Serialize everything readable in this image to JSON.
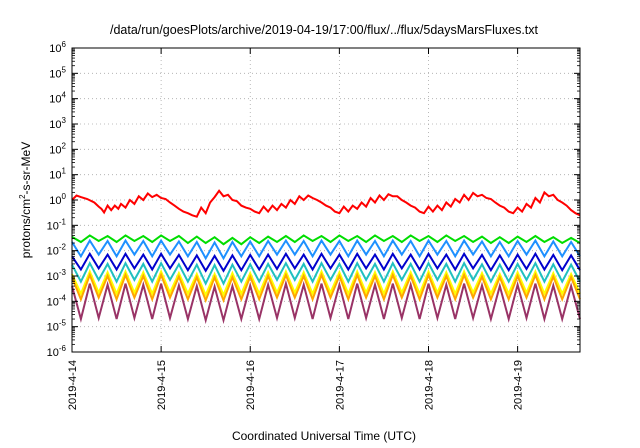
{
  "chart_data": {
    "type": "line",
    "title": "/data/run/goesPlots/archive/2019-04-19/17:00/flux/../flux/5daysMarsFluxes.txt",
    "xlabel": "Coordinated Universal Time (UTC)",
    "ylabel": "protons/cm²-s-sr-MeV",
    "ylabel_parts": {
      "pre": "protons/cm",
      "sup": "2",
      "post": "-s-sr-MeV"
    },
    "y_scale": "log",
    "ylim": [
      1e-06,
      1000000.0
    ],
    "y_ticks": [
      {
        "exp": -6
      },
      {
        "exp": -5
      },
      {
        "exp": -4
      },
      {
        "exp": -3
      },
      {
        "exp": -2
      },
      {
        "exp": -1
      },
      {
        "exp": 0
      },
      {
        "exp": 1
      },
      {
        "exp": 2
      },
      {
        "exp": 3
      },
      {
        "exp": 4
      },
      {
        "exp": 5
      },
      {
        "exp": 6
      }
    ],
    "y_tick_base": "10",
    "xlim": [
      "2019-04-14",
      "2019-04-19 17:00"
    ],
    "x_ticks": [
      "2019-4-14",
      "2019-4-15",
      "2019-4-16",
      "2019-4-17",
      "2019-4-18",
      "2019-4-19"
    ],
    "grid": true,
    "grid_style": "dotted",
    "legend": "none",
    "series": [
      {
        "color": "#ff0000",
        "x": [
          0.0,
          0.05,
          0.1,
          0.17,
          0.25,
          0.3,
          0.33,
          0.36,
          0.4,
          0.44,
          0.48,
          0.52,
          0.55,
          0.6,
          0.65,
          0.7,
          0.75,
          0.8,
          0.85,
          0.9,
          0.95,
          1.0,
          1.05,
          1.1,
          1.15,
          1.2,
          1.25,
          1.3,
          1.35,
          1.4,
          1.45,
          1.5,
          1.55,
          1.6,
          1.65,
          1.7,
          1.75,
          1.8,
          1.85,
          1.9,
          1.95,
          2.0,
          2.05,
          2.1,
          2.15,
          2.2,
          2.25,
          2.3,
          2.35,
          2.4,
          2.45,
          2.5,
          2.55,
          2.6,
          2.65,
          2.7,
          2.75,
          2.8,
          2.85,
          2.9,
          2.95,
          3.0,
          3.05,
          3.1,
          3.15,
          3.2,
          3.25,
          3.3,
          3.35,
          3.4,
          3.45,
          3.5,
          3.55,
          3.6,
          3.65,
          3.7,
          3.75,
          3.8,
          3.85,
          3.9,
          3.95,
          4.0,
          4.05,
          4.1,
          4.15,
          4.2,
          4.25,
          4.3,
          4.35,
          4.4,
          4.45,
          4.5,
          4.55,
          4.6,
          4.65,
          4.7,
          4.75,
          4.8,
          4.85,
          4.9,
          4.95,
          5.0,
          5.05,
          5.1,
          5.15,
          5.2,
          5.25,
          5.3,
          5.35,
          5.4,
          5.45,
          5.5,
          5.55,
          5.6,
          5.65,
          5.7
        ],
        "y": [
          1.0,
          1.5,
          1.3,
          1.1,
          0.8,
          0.55,
          0.45,
          0.32,
          0.6,
          0.4,
          0.6,
          0.45,
          0.7,
          0.5,
          1.0,
          0.7,
          1.4,
          1.0,
          1.8,
          1.3,
          1.6,
          1.2,
          1.1,
          0.8,
          0.6,
          0.45,
          0.35,
          0.3,
          0.25,
          0.22,
          0.5,
          0.3,
          0.8,
          1.3,
          2.3,
          1.4,
          1.6,
          1.0,
          0.9,
          0.6,
          0.5,
          0.45,
          0.35,
          0.3,
          0.55,
          0.35,
          0.6,
          0.4,
          0.7,
          0.5,
          1.0,
          0.7,
          1.4,
          1.0,
          1.5,
          1.2,
          1.0,
          0.8,
          0.6,
          0.5,
          0.35,
          0.3,
          0.55,
          0.35,
          0.6,
          0.45,
          0.8,
          0.55,
          1.2,
          0.8,
          1.5,
          1.0,
          1.7,
          1.4,
          1.4,
          1.0,
          0.8,
          0.6,
          0.5,
          0.35,
          0.3,
          0.55,
          0.35,
          0.6,
          0.4,
          0.8,
          0.55,
          1.1,
          0.8,
          1.6,
          1.0,
          1.9,
          1.4,
          1.6,
          1.2,
          1.1,
          0.8,
          0.6,
          0.5,
          0.35,
          0.3,
          0.5,
          0.35,
          0.7,
          0.5,
          1.2,
          0.8,
          2.0,
          1.4,
          1.6,
          1.0,
          0.8,
          0.6,
          0.4,
          0.3,
          0.25
        ]
      },
      {
        "color": "#00dd00",
        "x": [
          0.0,
          0.1,
          0.2,
          0.3,
          0.4,
          0.5,
          0.6,
          0.7,
          0.8,
          0.9,
          1.0,
          1.1,
          1.2,
          1.3,
          1.4,
          1.5,
          1.6,
          1.7,
          1.8,
          1.9,
          2.0,
          2.1,
          2.2,
          2.3,
          2.4,
          2.5,
          2.6,
          2.7,
          2.8,
          2.9,
          3.0,
          3.1,
          3.2,
          3.3,
          3.4,
          3.5,
          3.6,
          3.7,
          3.8,
          3.9,
          4.0,
          4.1,
          4.2,
          4.3,
          4.4,
          4.5,
          4.6,
          4.7,
          4.8,
          4.9,
          5.0,
          5.1,
          5.2,
          5.3,
          5.4,
          5.5,
          5.6,
          5.7
        ],
        "y": [
          0.035,
          0.022,
          0.04,
          0.024,
          0.038,
          0.022,
          0.04,
          0.024,
          0.038,
          0.022,
          0.04,
          0.024,
          0.038,
          0.02,
          0.036,
          0.02,
          0.034,
          0.018,
          0.032,
          0.018,
          0.034,
          0.02,
          0.036,
          0.022,
          0.038,
          0.022,
          0.04,
          0.024,
          0.038,
          0.022,
          0.04,
          0.024,
          0.038,
          0.022,
          0.04,
          0.024,
          0.038,
          0.022,
          0.04,
          0.024,
          0.038,
          0.022,
          0.04,
          0.024,
          0.038,
          0.022,
          0.036,
          0.02,
          0.034,
          0.02,
          0.036,
          0.022,
          0.038,
          0.022,
          0.034,
          0.02,
          0.032,
          0.02
        ]
      },
      {
        "color": "#1e90ff",
        "x": [
          0.0,
          0.1,
          0.2,
          0.3,
          0.4,
          0.5,
          0.6,
          0.7,
          0.8,
          0.9,
          1.0,
          1.1,
          1.2,
          1.3,
          1.4,
          1.5,
          1.6,
          1.7,
          1.8,
          1.9,
          2.0,
          2.1,
          2.2,
          2.3,
          2.4,
          2.5,
          2.6,
          2.7,
          2.8,
          2.9,
          3.0,
          3.1,
          3.2,
          3.3,
          3.4,
          3.5,
          3.6,
          3.7,
          3.8,
          3.9,
          4.0,
          4.1,
          4.2,
          4.3,
          4.4,
          4.5,
          4.6,
          4.7,
          4.8,
          4.9,
          5.0,
          5.1,
          5.2,
          5.3,
          5.4,
          5.5,
          5.6,
          5.7
        ],
        "y": [
          0.022,
          0.006,
          0.025,
          0.007,
          0.024,
          0.006,
          0.025,
          0.007,
          0.024,
          0.006,
          0.025,
          0.007,
          0.023,
          0.006,
          0.022,
          0.005,
          0.021,
          0.005,
          0.022,
          0.006,
          0.023,
          0.006,
          0.024,
          0.007,
          0.025,
          0.007,
          0.024,
          0.006,
          0.025,
          0.007,
          0.024,
          0.006,
          0.025,
          0.007,
          0.024,
          0.006,
          0.025,
          0.007,
          0.024,
          0.006,
          0.025,
          0.007,
          0.024,
          0.006,
          0.025,
          0.007,
          0.023,
          0.006,
          0.022,
          0.006,
          0.024,
          0.007,
          0.025,
          0.006,
          0.023,
          0.006,
          0.022,
          0.006
        ]
      },
      {
        "color": "#0000cc",
        "x": [
          0.0,
          0.1,
          0.2,
          0.3,
          0.4,
          0.5,
          0.6,
          0.7,
          0.8,
          0.9,
          1.0,
          1.1,
          1.2,
          1.3,
          1.4,
          1.5,
          1.6,
          1.7,
          1.8,
          1.9,
          2.0,
          2.1,
          2.2,
          2.3,
          2.4,
          2.5,
          2.6,
          2.7,
          2.8,
          2.9,
          3.0,
          3.1,
          3.2,
          3.3,
          3.4,
          3.5,
          3.6,
          3.7,
          3.8,
          3.9,
          4.0,
          4.1,
          4.2,
          4.3,
          4.4,
          4.5,
          4.6,
          4.7,
          4.8,
          4.9,
          5.0,
          5.1,
          5.2,
          5.3,
          5.4,
          5.5,
          5.6,
          5.7
        ],
        "y": [
          0.006,
          0.0018,
          0.0075,
          0.002,
          0.007,
          0.0018,
          0.0075,
          0.002,
          0.007,
          0.0018,
          0.0075,
          0.002,
          0.0068,
          0.0017,
          0.0065,
          0.0016,
          0.0062,
          0.0016,
          0.0065,
          0.0017,
          0.0068,
          0.0018,
          0.007,
          0.0019,
          0.0075,
          0.002,
          0.007,
          0.0018,
          0.0075,
          0.002,
          0.007,
          0.0018,
          0.0075,
          0.002,
          0.007,
          0.0018,
          0.0075,
          0.002,
          0.007,
          0.0018,
          0.0075,
          0.002,
          0.007,
          0.0018,
          0.0075,
          0.002,
          0.0068,
          0.0017,
          0.0065,
          0.0017,
          0.007,
          0.0019,
          0.0075,
          0.0018,
          0.0068,
          0.0017,
          0.0065,
          0.0017
        ]
      },
      {
        "color": "#20c0c0",
        "x": [
          0.0,
          0.1,
          0.2,
          0.3,
          0.4,
          0.5,
          0.6,
          0.7,
          0.8,
          0.9,
          1.0,
          1.1,
          1.2,
          1.3,
          1.4,
          1.5,
          1.6,
          1.7,
          1.8,
          1.9,
          2.0,
          2.1,
          2.2,
          2.3,
          2.4,
          2.5,
          2.6,
          2.7,
          2.8,
          2.9,
          3.0,
          3.1,
          3.2,
          3.3,
          3.4,
          3.5,
          3.6,
          3.7,
          3.8,
          3.9,
          4.0,
          4.1,
          4.2,
          4.3,
          4.4,
          4.5,
          4.6,
          4.7,
          4.8,
          4.9,
          5.0,
          5.1,
          5.2,
          5.3,
          5.4,
          5.5,
          5.6,
          5.7
        ],
        "y": [
          0.0028,
          0.0006,
          0.0032,
          0.0007,
          0.003,
          0.0006,
          0.0032,
          0.0007,
          0.003,
          0.0006,
          0.0032,
          0.0007,
          0.0029,
          0.0006,
          0.0028,
          0.0005,
          0.0027,
          0.0005,
          0.0028,
          0.0006,
          0.0029,
          0.0006,
          0.003,
          0.0007,
          0.0032,
          0.0007,
          0.003,
          0.0006,
          0.0032,
          0.0007,
          0.003,
          0.0006,
          0.0032,
          0.0007,
          0.003,
          0.0006,
          0.0032,
          0.0007,
          0.003,
          0.0006,
          0.0032,
          0.0007,
          0.003,
          0.0006,
          0.0032,
          0.0007,
          0.0029,
          0.0006,
          0.0028,
          0.0006,
          0.003,
          0.0007,
          0.0032,
          0.0006,
          0.0029,
          0.0006,
          0.0028,
          0.0006
        ]
      },
      {
        "color": "#ffff00",
        "x": [
          0.0,
          0.1,
          0.2,
          0.3,
          0.4,
          0.5,
          0.6,
          0.7,
          0.8,
          0.9,
          1.0,
          1.1,
          1.2,
          1.3,
          1.4,
          1.5,
          1.6,
          1.7,
          1.8,
          1.9,
          2.0,
          2.1,
          2.2,
          2.3,
          2.4,
          2.5,
          2.6,
          2.7,
          2.8,
          2.9,
          3.0,
          3.1,
          3.2,
          3.3,
          3.4,
          3.5,
          3.6,
          3.7,
          3.8,
          3.9,
          4.0,
          4.1,
          4.2,
          4.3,
          4.4,
          4.5,
          4.6,
          4.7,
          4.8,
          4.9,
          5.0,
          5.1,
          5.2,
          5.3,
          5.4,
          5.5,
          5.6,
          5.7
        ],
        "y": [
          0.0012,
          0.0002,
          0.0015,
          0.00022,
          0.0014,
          0.0002,
          0.0015,
          0.00022,
          0.0014,
          0.0002,
          0.0015,
          0.00022,
          0.0013,
          0.0002,
          0.0012,
          0.00018,
          0.0012,
          0.00018,
          0.0013,
          0.0002,
          0.0013,
          0.0002,
          0.0014,
          0.00022,
          0.0015,
          0.00022,
          0.0014,
          0.0002,
          0.0015,
          0.00022,
          0.0014,
          0.0002,
          0.0015,
          0.00022,
          0.0014,
          0.0002,
          0.0015,
          0.00022,
          0.0014,
          0.0002,
          0.0015,
          0.00022,
          0.0014,
          0.0002,
          0.0015,
          0.00022,
          0.0013,
          0.0002,
          0.0012,
          0.0002,
          0.0014,
          0.00022,
          0.0015,
          0.0002,
          0.0013,
          0.0002,
          0.0012,
          0.0002
        ]
      },
      {
        "color": "#ffa500",
        "x": [
          0.0,
          0.1,
          0.2,
          0.3,
          0.4,
          0.5,
          0.6,
          0.7,
          0.8,
          0.9,
          1.0,
          1.1,
          1.2,
          1.3,
          1.4,
          1.5,
          1.6,
          1.7,
          1.8,
          1.9,
          2.0,
          2.1,
          2.2,
          2.3,
          2.4,
          2.5,
          2.6,
          2.7,
          2.8,
          2.9,
          3.0,
          3.1,
          3.2,
          3.3,
          3.4,
          3.5,
          3.6,
          3.7,
          3.8,
          3.9,
          4.0,
          4.1,
          4.2,
          4.3,
          4.4,
          4.5,
          4.6,
          4.7,
          4.8,
          4.9,
          5.0,
          5.1,
          5.2,
          5.3,
          5.4,
          5.5,
          5.6,
          5.7
        ],
        "y": [
          0.0009,
          0.00012,
          0.0011,
          0.00014,
          0.001,
          0.00012,
          0.0011,
          0.00014,
          0.001,
          0.00012,
          0.0011,
          0.00014,
          0.00095,
          0.00012,
          0.0009,
          0.00011,
          0.00088,
          0.00011,
          0.0009,
          0.00012,
          0.00095,
          0.00012,
          0.001,
          0.00014,
          0.0011,
          0.00014,
          0.001,
          0.00012,
          0.0011,
          0.00014,
          0.001,
          0.00012,
          0.0011,
          0.00014,
          0.001,
          0.00012,
          0.0011,
          0.00014,
          0.001,
          0.00012,
          0.0011,
          0.00014,
          0.001,
          0.00012,
          0.0011,
          0.00014,
          0.00095,
          0.00012,
          0.0009,
          0.00012,
          0.001,
          0.00014,
          0.0011,
          0.00012,
          0.00095,
          0.00012,
          0.0009,
          0.00012
        ]
      },
      {
        "color": "#993366",
        "x": [
          0.0,
          0.1,
          0.2,
          0.3,
          0.4,
          0.5,
          0.6,
          0.7,
          0.8,
          0.9,
          1.0,
          1.1,
          1.2,
          1.3,
          1.4,
          1.5,
          1.6,
          1.7,
          1.8,
          1.9,
          2.0,
          2.1,
          2.2,
          2.3,
          2.4,
          2.5,
          2.6,
          2.7,
          2.8,
          2.9,
          3.0,
          3.1,
          3.2,
          3.3,
          3.4,
          3.5,
          3.6,
          3.7,
          3.8,
          3.9,
          4.0,
          4.1,
          4.2,
          4.3,
          4.4,
          4.5,
          4.6,
          4.7,
          4.8,
          4.9,
          5.0,
          5.1,
          5.2,
          5.3,
          5.4,
          5.5,
          5.6,
          5.7
        ],
        "y": [
          0.0004,
          2e-05,
          0.0005,
          2.2e-05,
          0.00045,
          2e-05,
          0.0005,
          2.2e-05,
          0.00045,
          2e-05,
          0.0005,
          2.2e-05,
          0.00042,
          2e-05,
          0.0004,
          1.8e-05,
          0.00038,
          1.8e-05,
          0.0004,
          2e-05,
          0.00042,
          2e-05,
          0.00045,
          2.2e-05,
          0.0005,
          2.2e-05,
          0.00045,
          2e-05,
          0.0005,
          2.2e-05,
          0.00045,
          2e-05,
          0.0005,
          2.2e-05,
          0.00045,
          2e-05,
          0.0005,
          2.2e-05,
          0.00045,
          2e-05,
          0.0005,
          2.2e-05,
          0.00045,
          2e-05,
          0.0005,
          2.2e-05,
          0.00042,
          2e-05,
          0.0004,
          2e-05,
          0.00045,
          2.2e-05,
          0.0005,
          2e-05,
          0.00042,
          2e-05,
          0.0004,
          2e-05
        ]
      }
    ]
  }
}
